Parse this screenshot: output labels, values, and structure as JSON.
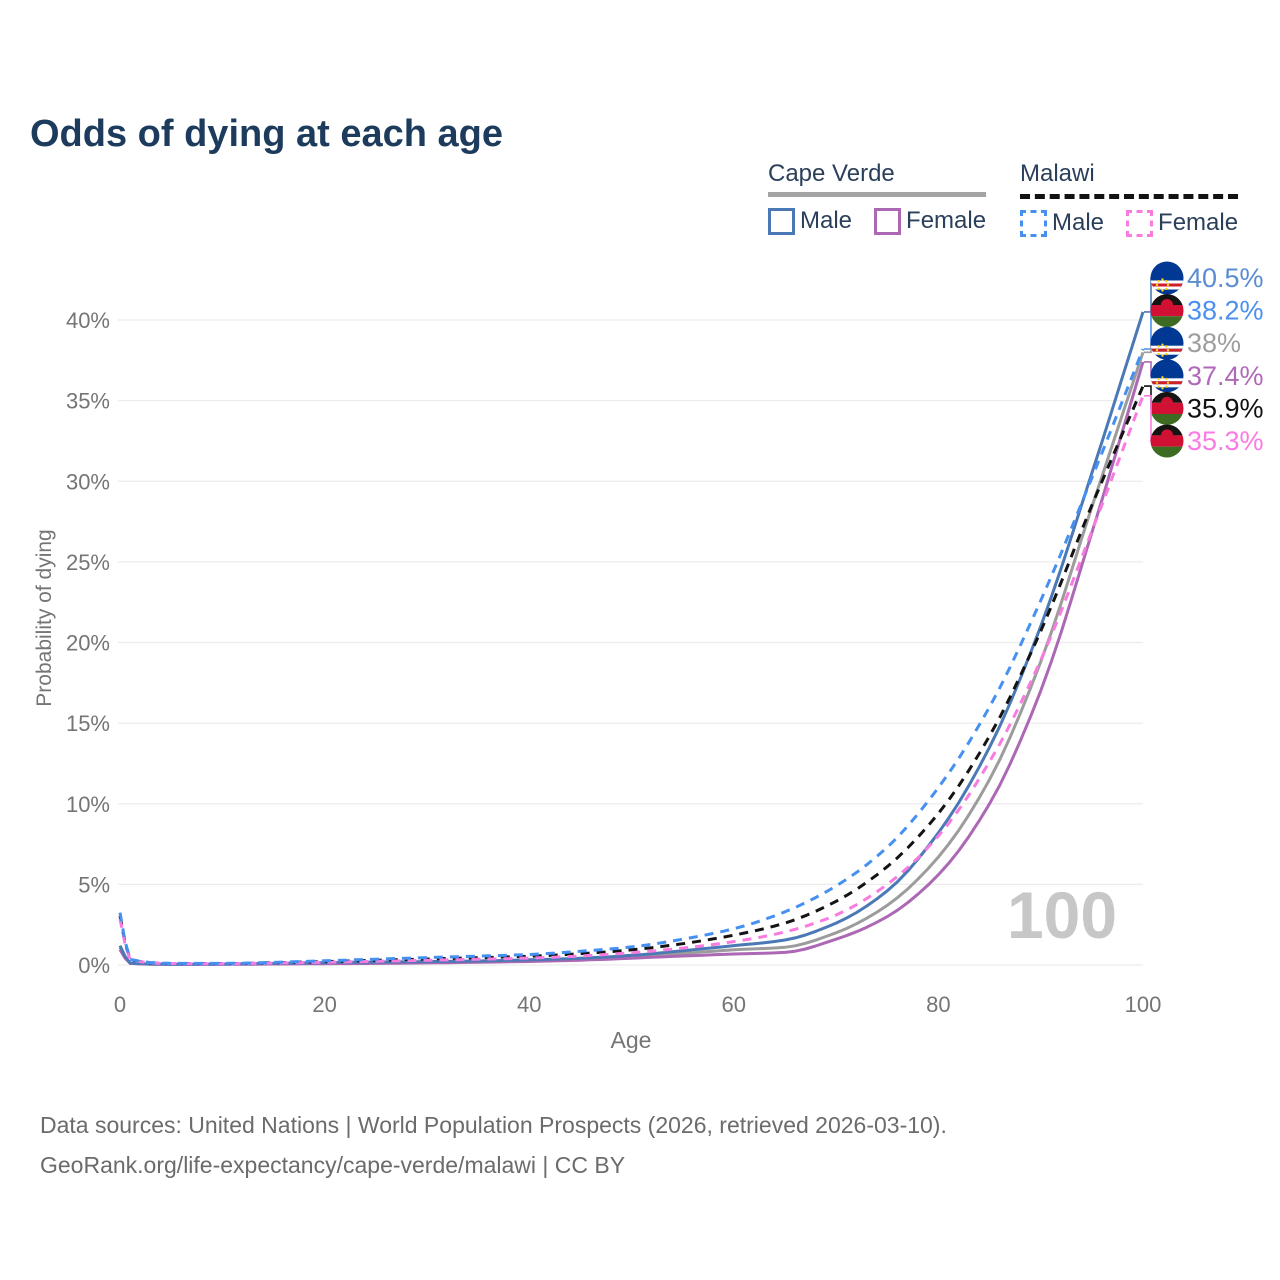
{
  "title": "Odds of dying at each age",
  "legend": {
    "groups": [
      {
        "label": "Cape Verde",
        "line_style": "solid",
        "underline_color": "#a3a3a3",
        "items": [
          {
            "label": "Male",
            "color": "#4a79b6"
          },
          {
            "label": "Female",
            "color": "#ac68b4"
          }
        ]
      },
      {
        "label": "Malawi",
        "line_style": "dashed",
        "underline_color": "#121212",
        "items": [
          {
            "label": "Male",
            "color": "#4690f2"
          },
          {
            "label": "Female",
            "color": "#f87ce0"
          }
        ]
      }
    ]
  },
  "footer": {
    "line1": "Data sources: United Nations | World Population Prospects (2026, retrieved 2026-03-10).",
    "line2": "GeoRank.org/life-expectancy/cape-verde/malawi | CC BY"
  },
  "chart_data": {
    "type": "line",
    "title": "Odds of dying at each age",
    "xlabel": "Age",
    "ylabel": "Probability of dying",
    "watermark": "100",
    "grid": "horizontal",
    "x_ticks": [
      0,
      20,
      40,
      60,
      80,
      100
    ],
    "y_ticks": [
      0,
      5,
      10,
      15,
      20,
      25,
      30,
      35,
      40
    ],
    "y_tick_suffix": "%",
    "xlim": [
      0,
      100
    ],
    "ylim": [
      0,
      40
    ],
    "legend_position": "top-right",
    "ages": [
      0,
      1,
      5,
      10,
      15,
      20,
      25,
      30,
      35,
      40,
      45,
      50,
      55,
      60,
      65,
      70,
      75,
      80,
      85,
      90,
      95,
      100
    ],
    "series": [
      {
        "id": "cape-verde-all",
        "country": "Cape Verde",
        "sex": "Both",
        "color": "#9c9c9c",
        "line_style": "solid",
        "flag": "cape-verde",
        "end_label": "38%",
        "label_color": "#9e9e9e",
        "values": [
          1.08,
          0.11,
          0.045,
          0.05,
          0.08,
          0.12,
          0.14,
          0.17,
          0.21,
          0.27,
          0.36,
          0.51,
          0.72,
          0.94,
          1.1,
          2.0,
          3.7,
          6.7,
          11.5,
          18.8,
          28.4,
          38.0
        ]
      },
      {
        "id": "cape-verde-female",
        "country": "Cape Verde",
        "sex": "Female",
        "color": "#ac68b4",
        "line_style": "solid",
        "flag": "cape-verde",
        "end_label": "37.4%",
        "label_color": "#b069b8",
        "values": [
          0.95,
          0.1,
          0.04,
          0.04,
          0.06,
          0.08,
          0.1,
          0.13,
          0.17,
          0.22,
          0.3,
          0.42,
          0.56,
          0.68,
          0.78,
          1.6,
          3.0,
          5.6,
          10.0,
          17.0,
          26.8,
          37.4
        ]
      },
      {
        "id": "cape-verde-male",
        "country": "Cape Verde",
        "sex": "Male",
        "color": "#4a79b6",
        "line_style": "solid",
        "flag": "cape-verde",
        "end_label": "40.5%",
        "label_color": "#5a8cd2",
        "values": [
          1.2,
          0.12,
          0.05,
          0.06,
          0.1,
          0.15,
          0.18,
          0.21,
          0.25,
          0.32,
          0.42,
          0.6,
          0.88,
          1.2,
          1.55,
          2.6,
          4.6,
          8.2,
          13.5,
          21.0,
          30.5,
          40.5
        ]
      },
      {
        "id": "malawi-all",
        "country": "Malawi",
        "sex": "Both",
        "color": "#141414",
        "line_style": "dashed",
        "flag": "malawi",
        "end_label": "35.9%",
        "label_color": "#111111",
        "values": [
          3.05,
          0.33,
          0.095,
          0.09,
          0.14,
          0.21,
          0.29,
          0.37,
          0.45,
          0.54,
          0.7,
          0.94,
          1.32,
          1.85,
          2.6,
          3.95,
          6.1,
          9.4,
          14.2,
          20.7,
          28.5,
          35.9
        ]
      },
      {
        "id": "malawi-female",
        "country": "Malawi",
        "sex": "Female",
        "color": "#f87ce0",
        "line_style": "dashed",
        "flag": "malawi",
        "end_label": "35.3%",
        "label_color": "#fb7ae3",
        "values": [
          2.85,
          0.3,
          0.09,
          0.08,
          0.12,
          0.17,
          0.23,
          0.29,
          0.36,
          0.43,
          0.56,
          0.76,
          1.05,
          1.45,
          2.05,
          3.1,
          5.0,
          8.0,
          12.6,
          18.9,
          26.9,
          35.3
        ]
      },
      {
        "id": "malawi-male",
        "country": "Malawi",
        "sex": "Male",
        "color": "#4690f2",
        "line_style": "dashed",
        "flag": "malawi",
        "end_label": "38.2%",
        "label_color": "#4b90f0",
        "values": [
          3.25,
          0.35,
          0.1,
          0.1,
          0.16,
          0.26,
          0.36,
          0.46,
          0.55,
          0.65,
          0.85,
          1.12,
          1.6,
          2.25,
          3.3,
          4.9,
          7.3,
          11.0,
          16.0,
          22.6,
          30.2,
          38.2
        ]
      }
    ],
    "colors": {
      "title": "#1d3b5c",
      "axis_text": "#757575",
      "gridline": "#ececec",
      "watermark": "#c7c7c7",
      "flag_cape_verde_blue": "#003893",
      "flag_cape_verde_red": "#cf2027",
      "flag_cape_verde_star": "#f7d116",
      "flag_malawi_black": "#161313",
      "flag_malawi_red": "#d21034",
      "flag_malawi_green": "#3d6b21"
    }
  }
}
